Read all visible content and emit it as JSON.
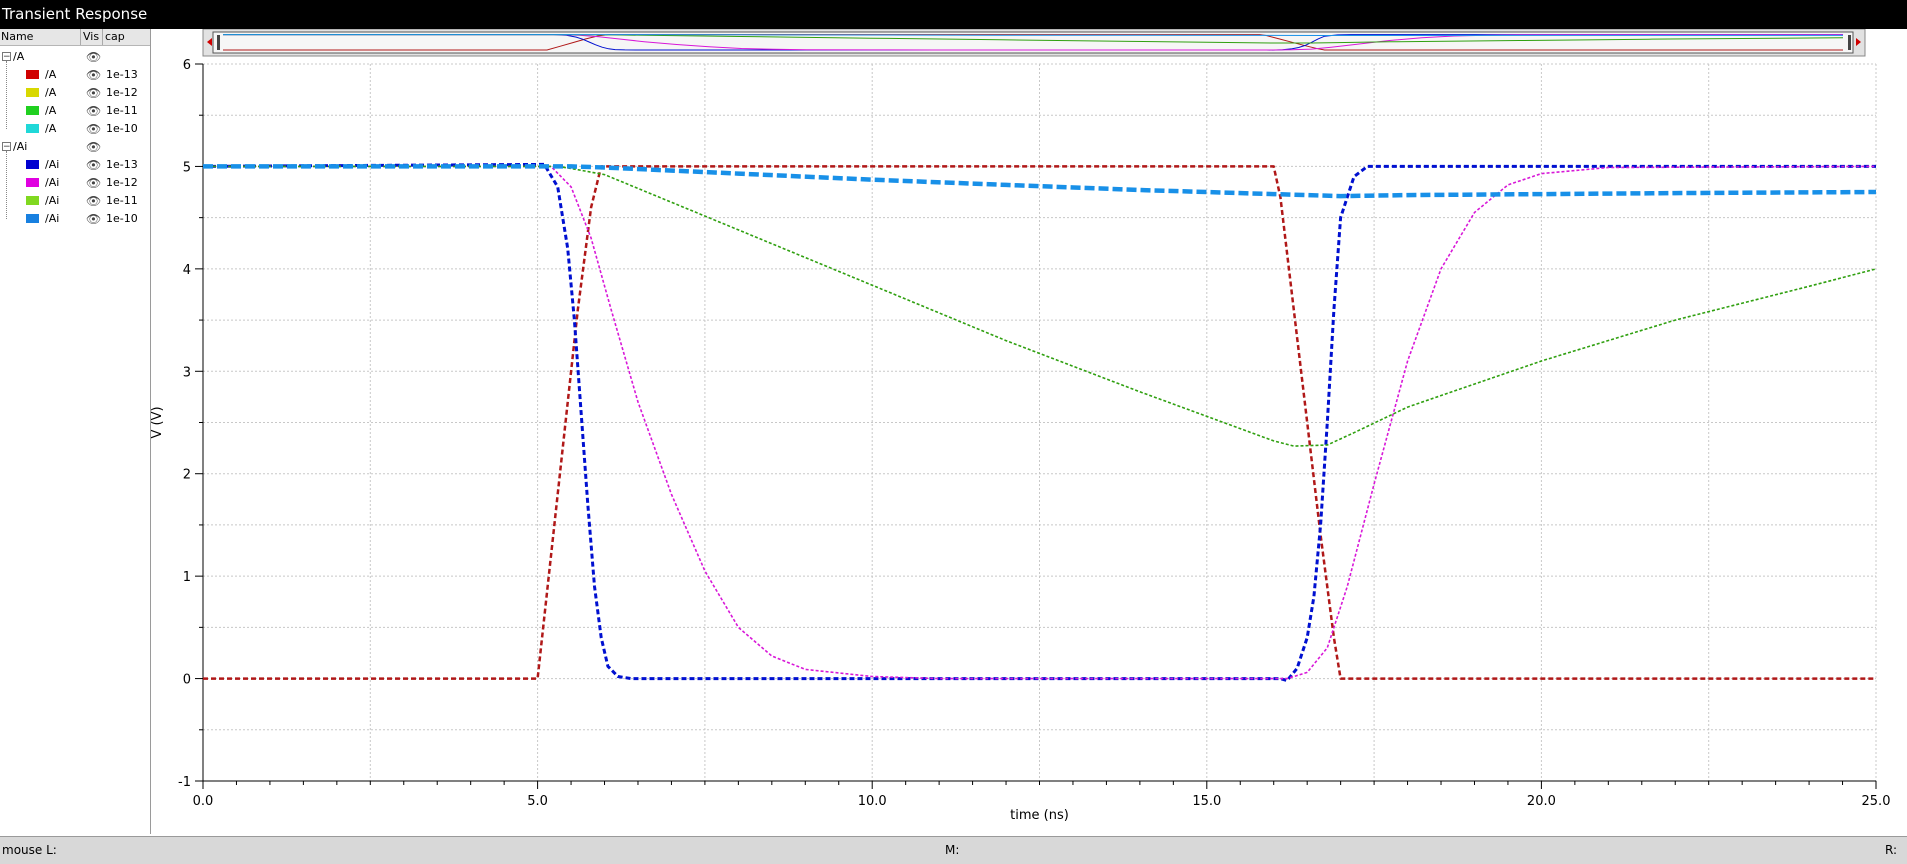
{
  "window": {
    "title": "Transient Response"
  },
  "legend": {
    "headers": {
      "name": "Name",
      "vis": "Vis",
      "cap": "cap"
    },
    "groups": [
      {
        "label": "/A",
        "items": [
          {
            "name": "/A",
            "cap": "1e-13",
            "color": "#d00000"
          },
          {
            "name": "/A",
            "cap": "1e-12",
            "color": "#d8d800"
          },
          {
            "name": "/A",
            "cap": "1e-11",
            "color": "#20d020"
          },
          {
            "name": "/A",
            "cap": "1e-10",
            "color": "#20d8d8"
          }
        ]
      },
      {
        "label": "/Ai",
        "items": [
          {
            "name": "/Ai",
            "cap": "1e-13",
            "color": "#0000d0"
          },
          {
            "name": "/Ai",
            "cap": "1e-12",
            "color": "#e000e0"
          },
          {
            "name": "/Ai",
            "cap": "1e-11",
            "color": "#80d820"
          },
          {
            "name": "/Ai",
            "cap": "1e-10",
            "color": "#1880e0"
          }
        ]
      }
    ]
  },
  "status": {
    "left": "mouse L:",
    "middle": "M:",
    "right": "R:"
  },
  "chart_data": {
    "type": "line",
    "title": "",
    "xlabel": "time (ns)",
    "ylabel": "V (V)",
    "xlim": [
      0,
      25
    ],
    "ylim": [
      -1,
      6
    ],
    "xticks": [
      "0.0",
      "5.0",
      "10.0",
      "15.0",
      "20.0",
      "25.0"
    ],
    "yticks": [
      "-1",
      "0",
      "1",
      "2",
      "3",
      "4",
      "5",
      "6"
    ],
    "grid": true,
    "series": [
      {
        "name": "/A",
        "cap": "1e-13",
        "color": "#b01818",
        "dash": "5,3",
        "width": 2.5,
        "points": [
          [
            0,
            0
          ],
          [
            5.0,
            0
          ],
          [
            5.2,
            1.2
          ],
          [
            5.4,
            2.4
          ],
          [
            5.6,
            3.6
          ],
          [
            5.8,
            4.6
          ],
          [
            5.95,
            5.0
          ],
          [
            16.0,
            5.0
          ],
          [
            16.1,
            4.7
          ],
          [
            16.3,
            3.6
          ],
          [
            16.5,
            2.5
          ],
          [
            16.7,
            1.4
          ],
          [
            16.9,
            0.4
          ],
          [
            17.0,
            0
          ],
          [
            25,
            0
          ]
        ]
      },
      {
        "name": "/Ai",
        "cap": "1e-13",
        "color": "#0010d0",
        "dash": "5,3",
        "width": 3,
        "points": [
          [
            0,
            5.0
          ],
          [
            5.1,
            5.02
          ],
          [
            5.3,
            4.8
          ],
          [
            5.45,
            4.2
          ],
          [
            5.55,
            3.5
          ],
          [
            5.65,
            2.6
          ],
          [
            5.75,
            1.7
          ],
          [
            5.85,
            0.9
          ],
          [
            5.95,
            0.4
          ],
          [
            6.05,
            0.12
          ],
          [
            6.2,
            0.02
          ],
          [
            6.4,
            0
          ],
          [
            16.1,
            0
          ],
          [
            16.2,
            -0.02
          ],
          [
            16.35,
            0.1
          ],
          [
            16.5,
            0.4
          ],
          [
            16.6,
            0.8
          ],
          [
            16.7,
            1.5
          ],
          [
            16.8,
            2.5
          ],
          [
            16.9,
            3.6
          ],
          [
            17.0,
            4.5
          ],
          [
            17.2,
            4.9
          ],
          [
            17.4,
            5.0
          ],
          [
            25,
            5.0
          ]
        ]
      },
      {
        "name": "/Ai",
        "cap": "1e-12",
        "color": "#d818d8",
        "dash": "3,2",
        "width": 1.6,
        "points": [
          [
            0,
            5.0
          ],
          [
            5.2,
            5.0
          ],
          [
            5.5,
            4.8
          ],
          [
            5.8,
            4.3
          ],
          [
            6.1,
            3.6
          ],
          [
            6.5,
            2.7
          ],
          [
            7.0,
            1.8
          ],
          [
            7.5,
            1.05
          ],
          [
            8.0,
            0.5
          ],
          [
            8.5,
            0.22
          ],
          [
            9.0,
            0.09
          ],
          [
            10.0,
            0.02
          ],
          [
            11.0,
            0
          ],
          [
            16.2,
            0
          ],
          [
            16.5,
            0.06
          ],
          [
            16.8,
            0.3
          ],
          [
            17.1,
            0.9
          ],
          [
            17.5,
            1.9
          ],
          [
            18.0,
            3.1
          ],
          [
            18.5,
            4.0
          ],
          [
            19.0,
            4.55
          ],
          [
            19.5,
            4.82
          ],
          [
            20.0,
            4.93
          ],
          [
            21.0,
            4.99
          ],
          [
            25,
            5.0
          ]
        ]
      },
      {
        "name": "/Ai",
        "cap": "1e-11",
        "color": "#30a010",
        "dash": "3,2",
        "width": 1.6,
        "points": [
          [
            0,
            5.0
          ],
          [
            5.3,
            5.0
          ],
          [
            5.5,
            4.98
          ],
          [
            6.0,
            4.92
          ],
          [
            8.0,
            4.38
          ],
          [
            10.0,
            3.84
          ],
          [
            12.0,
            3.3
          ],
          [
            14.0,
            2.8
          ],
          [
            16.0,
            2.32
          ],
          [
            16.3,
            2.27
          ],
          [
            16.8,
            2.28
          ],
          [
            17.2,
            2.4
          ],
          [
            18.0,
            2.65
          ],
          [
            20.0,
            3.1
          ],
          [
            22.0,
            3.5
          ],
          [
            24.0,
            3.83
          ],
          [
            25.0,
            4.0
          ]
        ]
      },
      {
        "name": "/Ai",
        "cap": "1e-10",
        "color": "#1890e8",
        "dash": "10,4",
        "width": 4.5,
        "points": [
          [
            0,
            5.0
          ],
          [
            5.5,
            5.0
          ],
          [
            6.0,
            4.99
          ],
          [
            8.0,
            4.93
          ],
          [
            10.0,
            4.87
          ],
          [
            12.0,
            4.82
          ],
          [
            14.0,
            4.77
          ],
          [
            16.0,
            4.73
          ],
          [
            17.0,
            4.71
          ],
          [
            18.0,
            4.72
          ],
          [
            20.0,
            4.73
          ],
          [
            22.0,
            4.74
          ],
          [
            25.0,
            4.75
          ]
        ]
      }
    ]
  }
}
